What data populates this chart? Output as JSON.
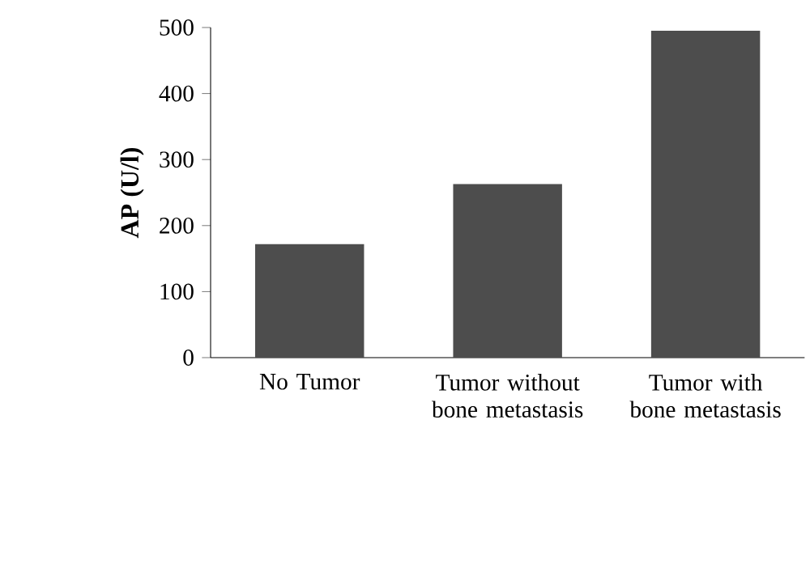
{
  "chart_data": {
    "type": "bar",
    "categories": [
      "No Tumor",
      "Tumor without bone metastasis",
      "Tumor with bone metastasis"
    ],
    "values": [
      172,
      263,
      495
    ],
    "color": "#4d4d4d",
    "ylabel": "AP (U/l)",
    "ylim": [
      0,
      500
    ],
    "yticks": [
      0,
      100,
      200,
      300,
      400,
      500
    ]
  }
}
